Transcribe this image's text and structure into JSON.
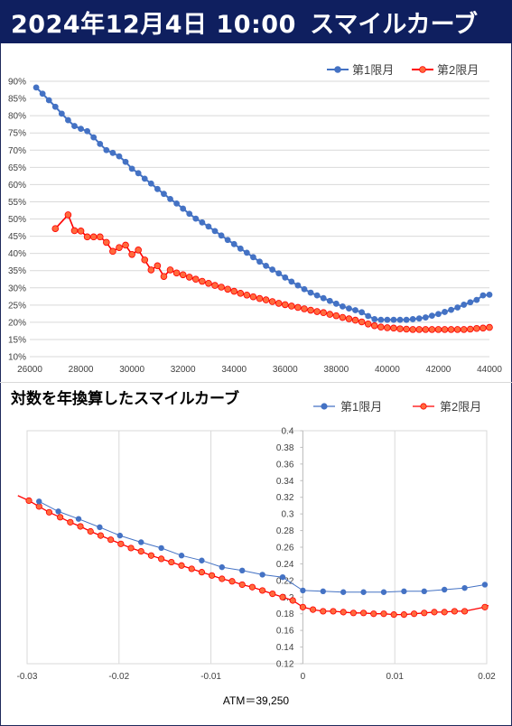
{
  "header": {
    "date": "2024年12月4日 10:00",
    "title": "スマイルカーブ"
  },
  "subtitle": "対数を年換算したスマイルカーブ",
  "atm_label": "ATM＝39,250",
  "colors": {
    "header_bg": "#0f1f5f",
    "series1": "#4472c4",
    "series2": "#ff0000",
    "series2_fill": "#ff6a3d"
  },
  "chart_data": [
    {
      "type": "line",
      "title": "",
      "xlabel": "",
      "ylabel": "",
      "xlim": [
        26000,
        44000
      ],
      "ylim": [
        0.1,
        0.9
      ],
      "x_ticks": [
        26000,
        28000,
        30000,
        32000,
        34000,
        36000,
        38000,
        40000,
        42000,
        44000
      ],
      "x_tick_labels": [
        "26000",
        "28000",
        "30000",
        "32000",
        "34000",
        "36000",
        "38000",
        "40000",
        "42000",
        "44000"
      ],
      "y_ticks": [
        0.1,
        0.15,
        0.2,
        0.25,
        0.3,
        0.35,
        0.4,
        0.45,
        0.5,
        0.55,
        0.6,
        0.65,
        0.7,
        0.75,
        0.8,
        0.85,
        0.9
      ],
      "y_tick_labels": [
        "10%",
        "15%",
        "20%",
        "25%",
        "30%",
        "35%",
        "40%",
        "45%",
        "50%",
        "55%",
        "60%",
        "65%",
        "70%",
        "75%",
        "80%",
        "85%",
        "90%"
      ],
      "grid": "horizontal",
      "legend": "top-right",
      "series": [
        {
          "name": "第1限月",
          "x": [
            26250,
            26500,
            26750,
            27000,
            27250,
            27500,
            27750,
            28000,
            28250,
            28500,
            28750,
            29000,
            29250,
            29500,
            29750,
            30000,
            30250,
            30500,
            30750,
            31000,
            31250,
            31500,
            31750,
            32000,
            32250,
            32500,
            32750,
            33000,
            33250,
            33500,
            33750,
            34000,
            34250,
            34500,
            34750,
            35000,
            35250,
            35500,
            35750,
            36000,
            36250,
            36500,
            36750,
            37000,
            37250,
            37500,
            37750,
            38000,
            38250,
            38500,
            38750,
            39000,
            39250,
            39500,
            39750,
            40000,
            40250,
            40500,
            40750,
            41000,
            41250,
            41500,
            41750,
            42000,
            42250,
            42500,
            42750,
            43000,
            43250,
            43500,
            43750,
            44000
          ],
          "values": [
            0.882,
            0.864,
            0.845,
            0.826,
            0.806,
            0.787,
            0.77,
            0.762,
            0.755,
            0.737,
            0.718,
            0.7,
            0.692,
            0.682,
            0.666,
            0.646,
            0.633,
            0.617,
            0.603,
            0.587,
            0.573,
            0.558,
            0.545,
            0.53,
            0.515,
            0.501,
            0.49,
            0.478,
            0.465,
            0.452,
            0.439,
            0.427,
            0.414,
            0.402,
            0.389,
            0.376,
            0.364,
            0.353,
            0.342,
            0.33,
            0.318,
            0.307,
            0.296,
            0.286,
            0.278,
            0.27,
            0.262,
            0.254,
            0.246,
            0.24,
            0.235,
            0.229,
            0.218,
            0.209,
            0.207,
            0.207,
            0.207,
            0.207,
            0.207,
            0.209,
            0.211,
            0.214,
            0.219,
            0.224,
            0.23,
            0.236,
            0.243,
            0.251,
            0.258,
            0.265,
            0.278,
            0.28
          ]
        },
        {
          "name": "第2限月",
          "x": [
            27000,
            27500,
            27750,
            28000,
            28250,
            28500,
            28750,
            29000,
            29250,
            29500,
            29750,
            30000,
            30250,
            30500,
            30750,
            31000,
            31250,
            31500,
            31750,
            32000,
            32250,
            32500,
            32750,
            33000,
            33250,
            33500,
            33750,
            34000,
            34250,
            34500,
            34750,
            35000,
            35250,
            35500,
            35750,
            36000,
            36250,
            36500,
            36750,
            37000,
            37250,
            37500,
            37750,
            38000,
            38250,
            38500,
            38750,
            39000,
            39250,
            39500,
            39750,
            40000,
            40250,
            40500,
            40750,
            41000,
            41250,
            41500,
            41750,
            42000,
            42250,
            42500,
            42750,
            43000,
            43250,
            43500,
            43750,
            44000
          ],
          "values": [
            0.472,
            0.512,
            0.466,
            0.465,
            0.448,
            0.448,
            0.448,
            0.432,
            0.406,
            0.417,
            0.424,
            0.397,
            0.41,
            0.381,
            0.352,
            0.364,
            0.333,
            0.352,
            0.343,
            0.338,
            0.331,
            0.325,
            0.319,
            0.313,
            0.307,
            0.302,
            0.296,
            0.29,
            0.284,
            0.279,
            0.274,
            0.269,
            0.265,
            0.26,
            0.255,
            0.251,
            0.247,
            0.243,
            0.239,
            0.235,
            0.231,
            0.228,
            0.223,
            0.219,
            0.214,
            0.21,
            0.206,
            0.201,
            0.195,
            0.19,
            0.186,
            0.184,
            0.183,
            0.181,
            0.18,
            0.179,
            0.179,
            0.179,
            0.179,
            0.179,
            0.179,
            0.179,
            0.179,
            0.179,
            0.18,
            0.182,
            0.183,
            0.185
          ]
        }
      ]
    },
    {
      "type": "line",
      "title": "対数を年換算したスマイルカーブ",
      "xlabel": "ATM＝39,250",
      "ylabel": "",
      "xlim": [
        -0.03,
        0.02
      ],
      "ylim": [
        0.12,
        0.4
      ],
      "x_ticks": [
        -0.03,
        -0.02,
        -0.01,
        0,
        0.01,
        0.02
      ],
      "x_tick_labels": [
        "-0.03",
        "-0.02",
        "-0.01",
        "0",
        "0.01",
        "0.02"
      ],
      "y_ticks": [
        0.12,
        0.14,
        0.16,
        0.18,
        0.2,
        0.22,
        0.24,
        0.26,
        0.28,
        0.3,
        0.32,
        0.34,
        0.36,
        0.38,
        0.4
      ],
      "y_tick_labels": [
        "0.12",
        "0.14",
        "0.16",
        "0.18",
        "0.2",
        "0.22",
        "0.24",
        "0.26",
        "0.28",
        "0.3",
        "0.32",
        "0.34",
        "0.36",
        "0.38",
        "0.4"
      ],
      "grid": "vertical",
      "legend": "top-right",
      "series": [
        {
          "name": "第1限月",
          "x": [
            -0.0287,
            -0.0266,
            -0.0244,
            -0.0221,
            -0.0199,
            -0.0176,
            -0.0154,
            -0.0132,
            -0.011,
            -0.0088,
            -0.0066,
            -0.0044,
            -0.0022,
            0.0,
            0.0022,
            0.0044,
            0.0066,
            0.0088,
            0.011,
            0.0132,
            0.0154,
            0.0176,
            0.0198
          ],
          "values": [
            0.315,
            0.303,
            0.294,
            0.284,
            0.274,
            0.266,
            0.259,
            0.25,
            0.244,
            0.236,
            0.232,
            0.227,
            0.224,
            0.208,
            0.207,
            0.206,
            0.206,
            0.206,
            0.207,
            0.207,
            0.209,
            0.211,
            0.215
          ]
        },
        {
          "name": "第2限月",
          "x": [
            -0.0298,
            -0.0287,
            -0.0276,
            -0.0264,
            -0.0253,
            -0.0242,
            -0.0231,
            -0.022,
            -0.0209,
            -0.0198,
            -0.0187,
            -0.0176,
            -0.0165,
            -0.0154,
            -0.0143,
            -0.0132,
            -0.0121,
            -0.011,
            -0.0099,
            -0.0088,
            -0.0077,
            -0.0066,
            -0.0055,
            -0.0044,
            -0.0033,
            -0.0022,
            -0.0011,
            0.0,
            0.0011,
            0.0022,
            0.0033,
            0.0044,
            0.0055,
            0.0066,
            0.0077,
            0.0088,
            0.0099,
            0.011,
            0.0121,
            0.0132,
            0.0143,
            0.0154,
            0.0165,
            0.0176,
            0.0198
          ],
          "values": [
            0.316,
            0.309,
            0.302,
            0.296,
            0.29,
            0.285,
            0.279,
            0.274,
            0.269,
            0.264,
            0.259,
            0.255,
            0.25,
            0.246,
            0.242,
            0.238,
            0.234,
            0.23,
            0.226,
            0.222,
            0.219,
            0.215,
            0.212,
            0.208,
            0.204,
            0.2,
            0.196,
            0.188,
            0.185,
            0.183,
            0.183,
            0.182,
            0.181,
            0.181,
            0.18,
            0.18,
            0.179,
            0.179,
            0.18,
            0.181,
            0.182,
            0.182,
            0.183,
            0.183,
            0.188
          ]
        }
      ]
    }
  ]
}
